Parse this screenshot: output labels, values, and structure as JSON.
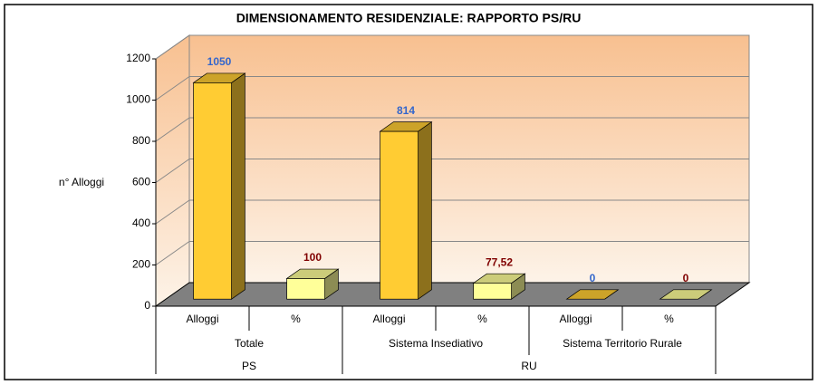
{
  "chart_data": {
    "type": "bar3d",
    "title": "DIMENSIONAMENTO RESIDENZIALE: RAPPORTO PS/RU",
    "y_label": "n° Alloggi",
    "groups": [
      {
        "name": "PS",
        "subgroups": [
          {
            "name": "Totale",
            "categories": [
              "Alloggi",
              "%"
            ]
          }
        ]
      },
      {
        "name": "RU",
        "subgroups": [
          {
            "name": "Sistema Insediativo",
            "categories": [
              "Alloggi",
              "%"
            ]
          },
          {
            "name": "Sistema Territorio Rurale",
            "categories": [
              "Alloggi",
              "%"
            ]
          }
        ]
      }
    ],
    "values": [
      1050,
      100,
      814,
      77.52,
      0,
      0
    ],
    "value_labels": [
      "1050",
      "100",
      "814",
      "77,52",
      "0",
      "0"
    ],
    "colors": [
      "#ffcc33",
      "#ffff99",
      "#ffcc33",
      "#ffff99",
      "#ffcc33",
      "#ffff99"
    ],
    "label_colors": [
      "#3366cc",
      "#800000",
      "#3366cc",
      "#800000",
      "#3366cc",
      "#800000"
    ],
    "ylim": [
      0,
      1200
    ],
    "yticks": [
      0,
      200,
      400,
      600,
      800,
      1000,
      1200
    ],
    "grid": true
  }
}
